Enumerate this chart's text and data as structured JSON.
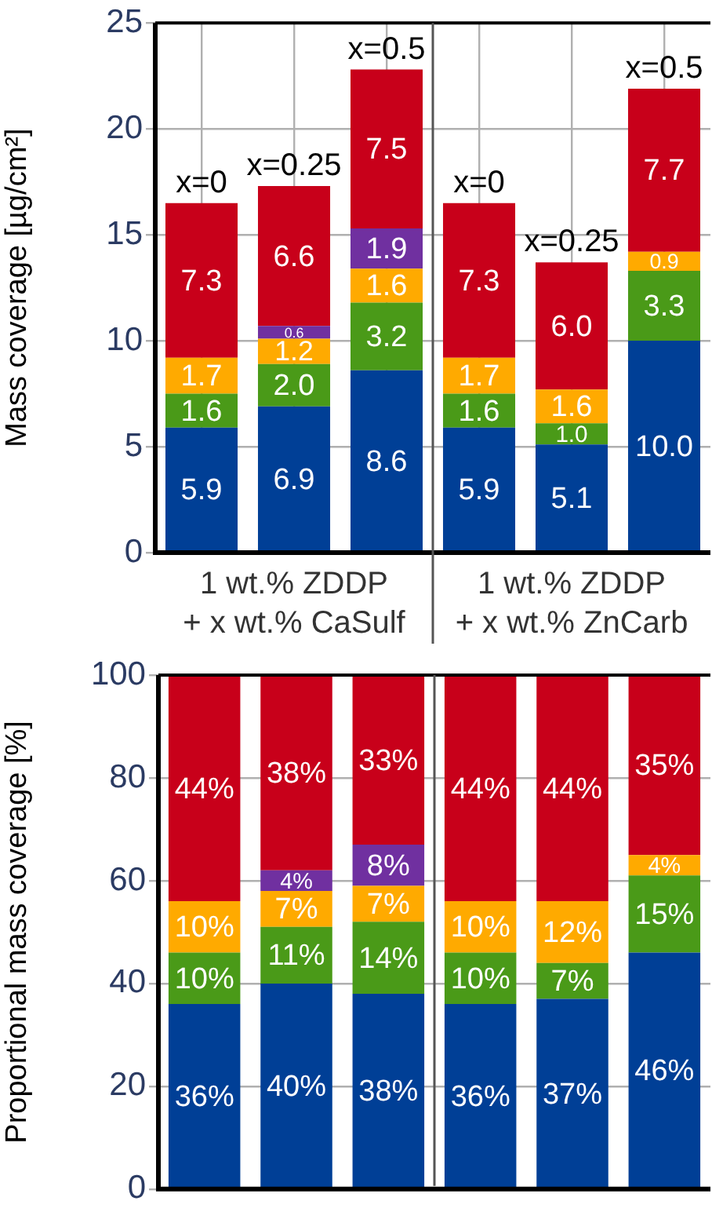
{
  "chart_data": [
    {
      "type": "bar",
      "stacked": true,
      "ylabel": "Mass coverage [µg/cm²]",
      "categories": [
        null,
        null,
        null,
        null,
        null,
        null
      ],
      "series": [
        {
          "color": "#003f96",
          "values": [
            5.9,
            6.9,
            8.6,
            5.9,
            5.1,
            10.0
          ],
          "value_labels": [
            "5.9",
            "6.9",
            "8.6",
            "5.9",
            "5.1",
            "10.0"
          ]
        },
        {
          "color": "#4a9a18",
          "values": [
            1.6,
            2.0,
            3.2,
            1.6,
            1.0,
            3.3
          ],
          "value_labels": [
            "1.6",
            "2.0",
            "3.2",
            "1.6",
            "1.0",
            "3.3"
          ]
        },
        {
          "color": "#ffaa00",
          "values": [
            1.7,
            1.2,
            1.6,
            1.7,
            1.6,
            0.9
          ],
          "value_labels": [
            "1.7",
            "1.2",
            "1.6",
            "1.7",
            "1.6",
            "0.9"
          ]
        },
        {
          "color": "#7030a0",
          "values": [
            null,
            0.6,
            1.9,
            null,
            null,
            null
          ],
          "value_labels": [
            null,
            "0.6",
            "1.9",
            null,
            null,
            null
          ]
        },
        {
          "color": "#c8001a",
          "values": [
            7.3,
            6.6,
            7.5,
            7.3,
            6.0,
            7.7
          ],
          "value_labels": [
            "7.3",
            "6.6",
            "7.5",
            "7.3",
            "6.0",
            "7.7"
          ]
        }
      ],
      "ylim": [
        0,
        25
      ],
      "yticks": [
        0,
        5,
        10,
        15,
        20,
        25
      ],
      "grid": true,
      "tick_labels": "y",
      "annotations": [
        "x=0",
        "x=0.25",
        "x=0.5",
        "x=0",
        "x=0.25",
        "x=0.5",
        "1 wt.% ZDDP\n+ x wt.% CaSulf",
        "1 wt.% ZDDP\n+ x wt.% ZnCarb"
      ]
    },
    {
      "type": "bar",
      "stacked": true,
      "ylabel": "Proportional mass coverage [%]",
      "categories": [
        null,
        null,
        null,
        null,
        null,
        null
      ],
      "series": [
        {
          "color": "#003f96",
          "values": [
            36,
            40,
            38,
            36,
            37,
            46
          ],
          "value_labels": [
            "36%",
            "40%",
            "38%",
            "36%",
            "37%",
            "46%"
          ]
        },
        {
          "color": "#4a9a18",
          "values": [
            10,
            11,
            14,
            10,
            7,
            15
          ],
          "value_labels": [
            "10%",
            "11%",
            "14%",
            "10%",
            "7%",
            "15%"
          ]
        },
        {
          "color": "#ffaa00",
          "values": [
            10,
            7,
            7,
            10,
            12,
            4
          ],
          "value_labels": [
            "10%",
            "7%",
            "7%",
            "10%",
            "12%",
            "4%"
          ]
        },
        {
          "color": "#7030a0",
          "values": [
            null,
            4,
            8,
            null,
            null,
            null
          ],
          "value_labels": [
            null,
            "4%",
            "8%",
            null,
            null,
            null
          ]
        },
        {
          "color": "#c8001a",
          "values": [
            44,
            38,
            33,
            44,
            44,
            35
          ],
          "value_labels": [
            "44%",
            "38%",
            "33%",
            "44%",
            "44%",
            "35%"
          ]
        }
      ],
      "ylim": [
        0,
        100
      ],
      "yticks": [
        0,
        20,
        40,
        60,
        80,
        100
      ],
      "grid": "y",
      "tick_labels": "y"
    }
  ]
}
